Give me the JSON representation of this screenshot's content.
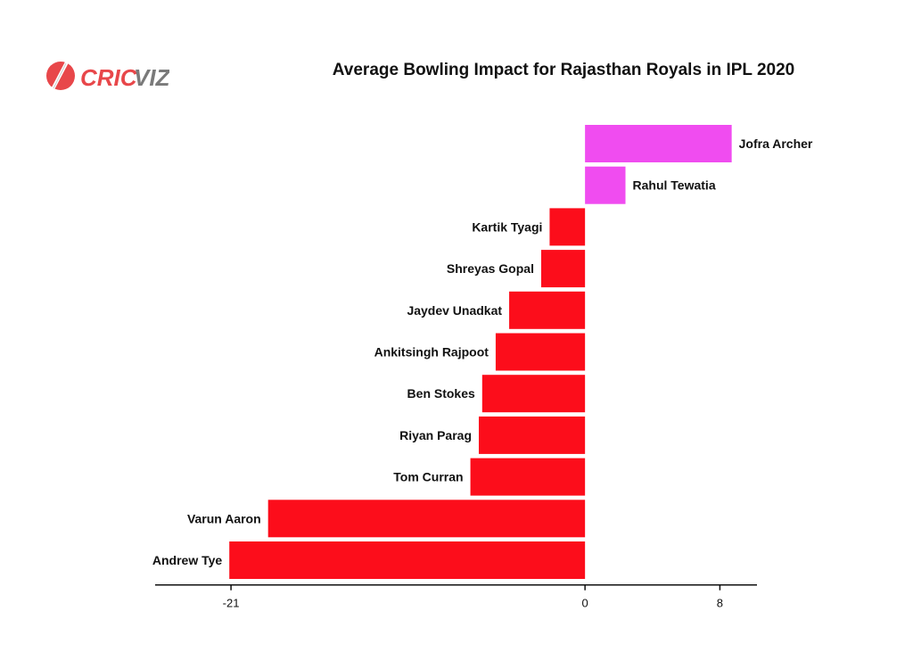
{
  "logo": {
    "text_left": "CRIC",
    "text_right": "VIZ",
    "color_left": "#e8474a",
    "color_right": "#7a7a7a",
    "icon": "cricket-bat-ball-icon"
  },
  "chart_data": {
    "type": "bar",
    "orientation": "horizontal",
    "title": "Average Bowling Impact for Rajasthan Royals in IPL 2020",
    "categories": [
      "Jofra Archer",
      "Rahul Tewatia",
      "Kartik Tyagi",
      "Shreyas Gopal",
      "Jaydev Unadkat",
      "Ankitsingh Rajpoot",
      "Ben Stokes",
      "Riyan Parag",
      "Tom Curran",
      "Varun Aaron",
      "Andrew Tye"
    ],
    "values": [
      8.7,
      2.4,
      -2.1,
      -2.6,
      -4.5,
      -5.3,
      -6.1,
      -6.3,
      -6.8,
      -18.8,
      -21.1
    ],
    "xlim": [
      -25.5,
      10.2
    ],
    "xticks": [
      -21,
      0,
      8
    ],
    "grid": false,
    "legend": "none",
    "colors": {
      "positive": "#f04cf0",
      "negative": "#fc0d1b"
    }
  }
}
